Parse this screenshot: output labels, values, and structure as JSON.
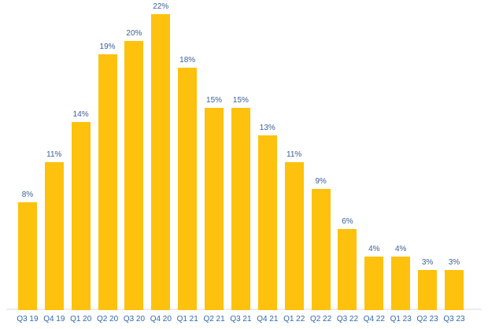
{
  "colors": {
    "bar": "#fec10d",
    "value_label": "#3c5f94",
    "axis_label": "#2f68ae",
    "axis_line": "#ececec",
    "background": "#ffffff"
  },
  "chart_data": {
    "type": "bar",
    "title": "",
    "xlabel": "",
    "ylabel": "",
    "categories": [
      "Q3 19",
      "Q4 19",
      "Q1 20",
      "Q2 20",
      "Q3 20",
      "Q4 20",
      "Q1 21",
      "Q2 21",
      "Q3 21",
      "Q4 21",
      "Q1 22",
      "Q2 22",
      "Q3 22",
      "Q4 22",
      "Q1 23",
      "Q2 23",
      "Q3 23"
    ],
    "values": [
      8,
      11,
      14,
      19,
      20,
      22,
      18,
      15,
      15,
      13,
      11,
      9,
      6,
      4,
      4,
      3,
      3
    ],
    "data_labels": [
      "8%",
      "11%",
      "14%",
      "19%",
      "20%",
      "22%",
      "18%",
      "15%",
      "15%",
      "13%",
      "11%",
      "9%",
      "6%",
      "4%",
      "4%",
      "3%",
      "3%"
    ],
    "unit": "%",
    "ylim": [
      0,
      22
    ],
    "grid": false,
    "legend": false,
    "y_axis_visible": false,
    "x_axis_line_visible": true
  }
}
